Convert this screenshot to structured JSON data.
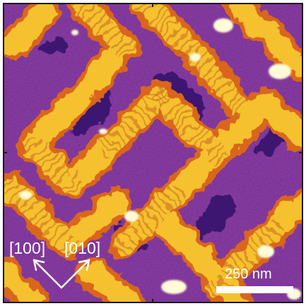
{
  "image": {
    "description_icon": "stm-topography-image",
    "palette": [
      "#3a1070",
      "#6a2590",
      "#9b3a98",
      "#c9506a",
      "#e8862a",
      "#f6c431",
      "#fffbd0"
    ]
  },
  "annotations": {
    "direction_a": "[100]",
    "direction_b": "[010]",
    "scale_bar_label": "250 nm"
  },
  "colors": {
    "annotation_text": "#ffffff",
    "frame": "#1a1a1a"
  }
}
